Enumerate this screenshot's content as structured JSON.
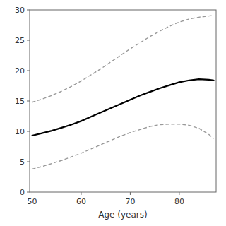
{
  "chart_data": {
    "type": "line",
    "x": [
      50,
      52,
      54,
      56,
      58,
      60,
      62,
      64,
      66,
      68,
      70,
      72,
      74,
      76,
      78,
      80,
      82,
      84,
      86,
      87
    ],
    "series": [
      {
        "color": "#999999",
        "line_style": "dashed",
        "values": [
          14.8,
          15.3,
          15.9,
          16.6,
          17.4,
          18.3,
          19.3,
          20.3,
          21.4,
          22.5,
          23.6,
          24.6,
          25.6,
          26.5,
          27.3,
          28.0,
          28.5,
          28.8,
          29.0,
          29.1
        ]
      },
      {
        "color": "#999999",
        "line_style": "dashed",
        "values": [
          3.8,
          4.2,
          4.7,
          5.2,
          5.8,
          6.4,
          7.1,
          7.8,
          8.5,
          9.2,
          9.8,
          10.3,
          10.8,
          11.1,
          11.2,
          11.2,
          11.0,
          10.5,
          9.5,
          8.8
        ]
      },
      {
        "color": "#000000",
        "line_style": "solid",
        "values": [
          9.3,
          9.7,
          10.1,
          10.6,
          11.1,
          11.7,
          12.4,
          13.1,
          13.8,
          14.5,
          15.2,
          15.9,
          16.5,
          17.1,
          17.6,
          18.1,
          18.4,
          18.6,
          18.5,
          18.4
        ]
      }
    ],
    "xlabel": "Age (years)",
    "xlim": [
      49.5,
      87.5
    ],
    "ylim": [
      0,
      30
    ],
    "xticks": [
      50,
      60,
      70,
      80
    ],
    "yticks": [
      0,
      5,
      10,
      15,
      20,
      25,
      30
    ],
    "grid": false
  }
}
